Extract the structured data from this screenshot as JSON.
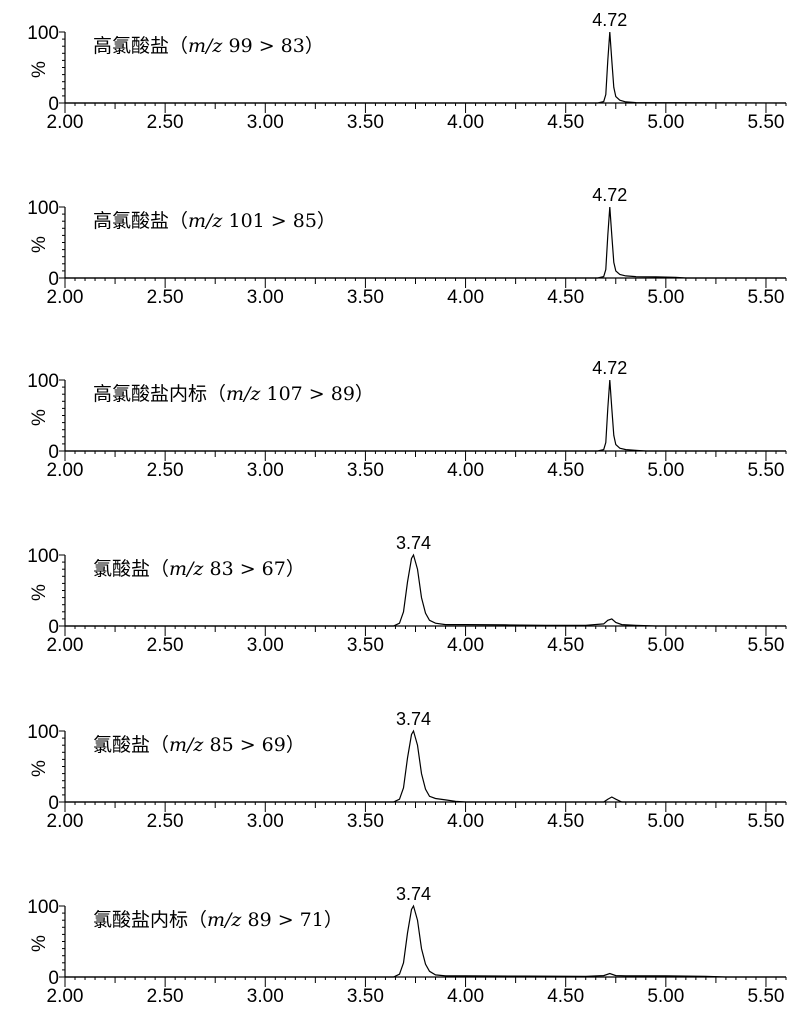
{
  "chart_data": [
    {
      "type": "line",
      "title": "高氯酸盐（m/z 99 > 83）",
      "title_parts": {
        "name": "高氯酸盐（",
        "mz": "m/z",
        "transition": " 99 > 83）"
      },
      "ylabel": "%",
      "ylim": [
        0,
        100
      ],
      "yticks": [
        "0",
        "100"
      ],
      "xlim": [
        2.0,
        5.6
      ],
      "xticks": [
        "2.00",
        "2.50",
        "3.00",
        "3.50",
        "4.00",
        "4.50",
        "5.00",
        "5.50"
      ],
      "peak_label": "4.72",
      "series": [
        {
          "x": [
            2.0,
            4.66,
            4.69,
            4.7,
            4.71,
            4.72,
            4.73,
            4.74,
            4.75,
            4.77,
            4.8,
            4.85,
            5.6
          ],
          "y": [
            0,
            0,
            2,
            12,
            60,
            100,
            60,
            22,
            9,
            4,
            1.5,
            0.5,
            0
          ]
        }
      ]
    },
    {
      "type": "line",
      "title": "高氯酸盐（m/z 101 > 85）",
      "title_parts": {
        "name": "高氯酸盐（",
        "mz": "m/z",
        "transition": " 101 > 85）"
      },
      "ylabel": "%",
      "ylim": [
        0,
        100
      ],
      "yticks": [
        "0",
        "100"
      ],
      "xlim": [
        2.0,
        5.6
      ],
      "xticks": [
        "2.00",
        "2.50",
        "3.00",
        "3.50",
        "4.00",
        "4.50",
        "5.00",
        "5.50"
      ],
      "peak_label": "4.72",
      "series": [
        {
          "x": [
            2.0,
            4.66,
            4.69,
            4.7,
            4.71,
            4.72,
            4.73,
            4.74,
            4.75,
            4.77,
            4.8,
            4.85,
            4.95,
            5.05,
            5.1,
            5.6
          ],
          "y": [
            0,
            0,
            2,
            12,
            60,
            100,
            60,
            22,
            10,
            5,
            3,
            2,
            1.5,
            1,
            0,
            0
          ]
        }
      ]
    },
    {
      "type": "line",
      "title": "高氯酸盐内标（m/z 107 > 89）",
      "title_parts": {
        "name": "高氯酸盐内标（",
        "mz": "m/z",
        "transition": " 107 > 89）"
      },
      "ylabel": "%",
      "ylim": [
        0,
        100
      ],
      "yticks": [
        "0",
        "100"
      ],
      "xlim": [
        2.0,
        5.6
      ],
      "xticks": [
        "2.00",
        "2.50",
        "3.00",
        "3.50",
        "4.00",
        "4.50",
        "5.00",
        "5.50"
      ],
      "peak_label": "4.72",
      "series": [
        {
          "x": [
            2.0,
            4.66,
            4.69,
            4.7,
            4.71,
            4.72,
            4.73,
            4.74,
            4.75,
            4.77,
            4.8,
            4.85,
            4.9,
            5.6
          ],
          "y": [
            0,
            0,
            2,
            12,
            60,
            100,
            60,
            22,
            9,
            4,
            2,
            1,
            0,
            0
          ]
        }
      ]
    },
    {
      "type": "line",
      "title": "氯酸盐（m/z 83 > 67）",
      "title_parts": {
        "name": "氯酸盐（",
        "mz": "m/z",
        "transition": " 83 > 67）"
      },
      "ylabel": "%",
      "ylim": [
        0,
        100
      ],
      "yticks": [
        "0",
        "100"
      ],
      "xlim": [
        2.0,
        5.6
      ],
      "xticks": [
        "2.00",
        "2.50",
        "3.00",
        "3.50",
        "4.00",
        "4.50",
        "5.00",
        "5.50"
      ],
      "peak_label": "3.74",
      "series": [
        {
          "x": [
            2.0,
            3.64,
            3.67,
            3.69,
            3.71,
            3.73,
            3.74,
            3.76,
            3.78,
            3.8,
            3.82,
            3.85,
            3.9,
            4.0,
            4.2,
            4.4,
            4.6,
            4.69,
            4.71,
            4.73,
            4.75,
            4.78,
            4.85,
            4.95,
            5.6
          ],
          "y": [
            0,
            0,
            4,
            20,
            62,
            95,
            100,
            80,
            40,
            18,
            8,
            4,
            2,
            2,
            1.5,
            1,
            1,
            3,
            8,
            10,
            5,
            2,
            1,
            0,
            0
          ]
        }
      ]
    },
    {
      "type": "line",
      "title": "氯酸盐（m/z 85 > 69）",
      "title_parts": {
        "name": "氯酸盐（",
        "mz": "m/z",
        "transition": " 85 > 69）"
      },
      "ylabel": "%",
      "ylim": [
        0,
        100
      ],
      "yticks": [
        "0",
        "100"
      ],
      "xlim": [
        2.0,
        5.6
      ],
      "xticks": [
        "2.00",
        "2.50",
        "3.00",
        "3.50",
        "4.00",
        "4.50",
        "5.00",
        "5.50"
      ],
      "peak_label": "3.74",
      "series": [
        {
          "x": [
            2.0,
            3.64,
            3.67,
            3.69,
            3.71,
            3.73,
            3.74,
            3.76,
            3.78,
            3.8,
            3.82,
            3.85,
            3.9,
            3.95,
            4.0,
            4.69,
            4.71,
            4.73,
            4.75,
            4.78,
            5.6
          ],
          "y": [
            0,
            0,
            4,
            20,
            62,
            95,
            100,
            80,
            40,
            18,
            8,
            5,
            3,
            1,
            0,
            0,
            4,
            7,
            4,
            0,
            0
          ]
        }
      ]
    },
    {
      "type": "line",
      "title": "氯酸盐内标（m/z  89 > 71）",
      "title_parts": {
        "name": "氯酸盐内标（",
        "mz": "m/z",
        "transition": "  89 > 71）"
      },
      "ylabel": "%",
      "ylim": [
        0,
        100
      ],
      "yticks": [
        "0",
        "100"
      ],
      "xlim": [
        2.0,
        5.6
      ],
      "xticks": [
        "2.00",
        "2.50",
        "3.00",
        "3.50",
        "4.00",
        "4.50",
        "5.00",
        "5.50"
      ],
      "peak_label": "3.74",
      "series": [
        {
          "x": [
            2.0,
            3.64,
            3.67,
            3.69,
            3.71,
            3.73,
            3.74,
            3.76,
            3.78,
            3.8,
            3.82,
            3.85,
            3.9,
            4.0,
            4.3,
            4.6,
            4.69,
            4.72,
            4.75,
            4.8,
            5.0,
            5.2,
            5.3,
            5.6
          ],
          "y": [
            0,
            0,
            4,
            20,
            62,
            95,
            100,
            80,
            40,
            18,
            8,
            3,
            1.5,
            1.5,
            1.2,
            1,
            2,
            5,
            2,
            1.5,
            1.5,
            1,
            0,
            0
          ]
        }
      ]
    }
  ]
}
